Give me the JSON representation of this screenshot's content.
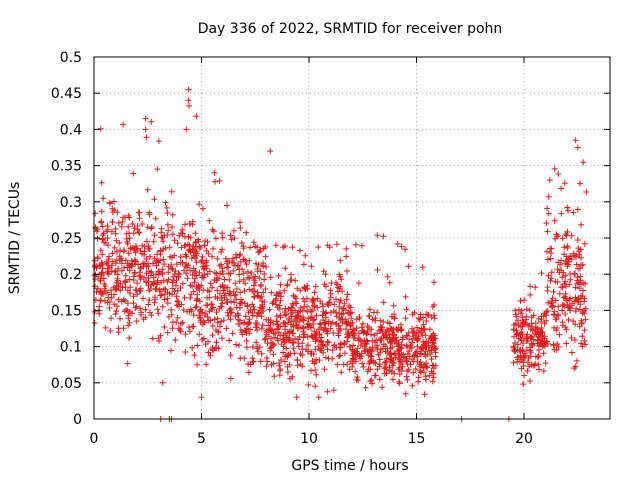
{
  "chart_data": {
    "type": "scatter",
    "title": "Day 336 of 2022, SRMTID for receiver pohn",
    "xlabel": "GPS time / hours",
    "ylabel": "SRMTID / TECUs",
    "xlim": [
      0,
      24
    ],
    "ylim": [
      0,
      0.5
    ],
    "xticks": [
      0,
      5,
      10,
      15,
      20
    ],
    "xtick_labels": [
      "0",
      "5",
      "10",
      "15",
      "20"
    ],
    "yticks": [
      0,
      0.05,
      0.1,
      0.15,
      0.2,
      0.25,
      0.3,
      0.35,
      0.4,
      0.45,
      0.5
    ],
    "ytick_labels": [
      "0",
      "0.05",
      "0.1",
      "0.15",
      "0.2",
      "0.25",
      "0.3",
      "0.35",
      "0.4",
      "0.45",
      "0.5"
    ],
    "grid": true,
    "marker": "+",
    "color": "#e41a1c",
    "point_count": 2100,
    "segments": [
      {
        "x_start": 0.0,
        "x_end": 2.9,
        "level": 0.21,
        "spread": 0.045,
        "peak": 0.415
      },
      {
        "x_start": 2.9,
        "x_end": 5.0,
        "level": 0.19,
        "spread": 0.05,
        "peak": 0.455
      },
      {
        "x_start": 5.0,
        "x_end": 8.0,
        "level": 0.17,
        "spread": 0.045,
        "peak": 0.345
      },
      {
        "x_start": 8.0,
        "x_end": 12.0,
        "level": 0.13,
        "spread": 0.035,
        "peak": 0.245
      },
      {
        "x_start": 12.0,
        "x_end": 15.9,
        "level": 0.1,
        "spread": 0.025,
        "peak": 0.255
      },
      {
        "x_start": 19.5,
        "x_end": 21.0,
        "level": 0.11,
        "spread": 0.025,
        "peak": 0.21
      },
      {
        "x_start": 21.0,
        "x_end": 22.9,
        "level": 0.18,
        "spread": 0.05,
        "peak": 0.385
      }
    ],
    "outliers": [
      {
        "x": 4.4,
        "y": 0.455
      },
      {
        "x": 4.4,
        "y": 0.44
      },
      {
        "x": 2.4,
        "y": 0.415
      },
      {
        "x": 2.4,
        "y": 0.4
      },
      {
        "x": 4.3,
        "y": 0.4
      },
      {
        "x": 8.2,
        "y": 0.37
      },
      {
        "x": 22.4,
        "y": 0.385
      },
      {
        "x": 22.5,
        "y": 0.375
      },
      {
        "x": 21.2,
        "y": 0.33
      },
      {
        "x": 5.0,
        "y": 0.03
      },
      {
        "x": 3.2,
        "y": 0.05
      },
      {
        "x": 14.5,
        "y": 0.035
      }
    ],
    "zero_points_x": [
      3.1,
      3.5,
      3.6,
      17.1,
      19.3
    ]
  }
}
